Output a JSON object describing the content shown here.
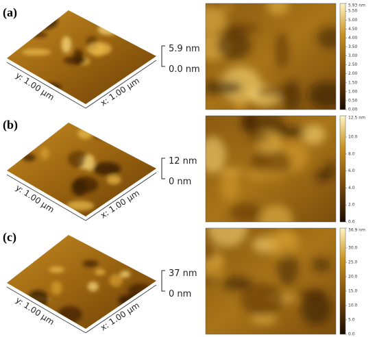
{
  "panels": [
    {
      "label": "(a)",
      "y_axis": "y: 1.00 µm",
      "x_axis": "x: 1.00 µm",
      "scale_top": "5.9 nm",
      "scale_bottom": "0.0 nm",
      "colorbar": [
        "5.93 nm",
        "5.50",
        "5.00",
        "4.50",
        "4.00",
        "3.50",
        "3.00",
        "2.50",
        "2.00",
        "1.50",
        "1.00",
        "0.50",
        "0.00"
      ]
    },
    {
      "label": "(b)",
      "y_axis": "y: 1.00 µm",
      "x_axis": "x: 1.00 µm",
      "scale_top": "12 nm",
      "scale_bottom": "0 nm",
      "colorbar": [
        "12.5 nm",
        "10.0",
        "8.0",
        "6.0",
        "4.0",
        "2.0",
        "0.0"
      ]
    },
    {
      "label": "(c)",
      "y_axis": "y: 1.00 µm",
      "x_axis": "x: 1.00 µm",
      "scale_top": "37 nm",
      "scale_bottom": "0 nm",
      "colorbar": [
        "36.9 nm",
        "30.0",
        "25.0",
        "20.0",
        "15.0",
        "10.0",
        "5.0",
        "0.0"
      ]
    }
  ]
}
